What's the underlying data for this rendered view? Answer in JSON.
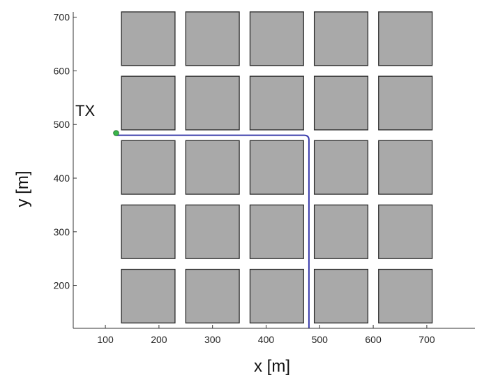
{
  "chart_data": {
    "type": "scatter",
    "title": "",
    "xlabel": "x [m]",
    "ylabel": "y [m]",
    "xlim": [
      40,
      790
    ],
    "ylim": [
      120,
      710
    ],
    "xticks": [
      100,
      200,
      300,
      400,
      500,
      600,
      700
    ],
    "yticks": [
      200,
      300,
      400,
      500,
      600,
      700
    ],
    "grid": false,
    "colors": {
      "building_fill": "#a9a9a9",
      "building_edge": "#2a2a2a",
      "route": "#3b3dab",
      "tx_marker": "#39b54a"
    },
    "buildings": [
      {
        "x0": 130,
        "x1": 230,
        "y0": 130,
        "y1": 230
      },
      {
        "x0": 250,
        "x1": 350,
        "y0": 130,
        "y1": 230
      },
      {
        "x0": 370,
        "x1": 470,
        "y0": 130,
        "y1": 230
      },
      {
        "x0": 490,
        "x1": 590,
        "y0": 130,
        "y1": 230
      },
      {
        "x0": 610,
        "x1": 710,
        "y0": 130,
        "y1": 230
      },
      {
        "x0": 130,
        "x1": 230,
        "y0": 250,
        "y1": 350
      },
      {
        "x0": 250,
        "x1": 350,
        "y0": 250,
        "y1": 350
      },
      {
        "x0": 370,
        "x1": 470,
        "y0": 250,
        "y1": 350
      },
      {
        "x0": 490,
        "x1": 590,
        "y0": 250,
        "y1": 350
      },
      {
        "x0": 610,
        "x1": 710,
        "y0": 250,
        "y1": 350
      },
      {
        "x0": 130,
        "x1": 230,
        "y0": 370,
        "y1": 470
      },
      {
        "x0": 250,
        "x1": 350,
        "y0": 370,
        "y1": 470
      },
      {
        "x0": 370,
        "x1": 470,
        "y0": 370,
        "y1": 470
      },
      {
        "x0": 490,
        "x1": 590,
        "y0": 370,
        "y1": 470
      },
      {
        "x0": 610,
        "x1": 710,
        "y0": 370,
        "y1": 470
      },
      {
        "x0": 130,
        "x1": 230,
        "y0": 490,
        "y1": 590
      },
      {
        "x0": 250,
        "x1": 350,
        "y0": 490,
        "y1": 590
      },
      {
        "x0": 370,
        "x1": 470,
        "y0": 490,
        "y1": 590
      },
      {
        "x0": 490,
        "x1": 590,
        "y0": 490,
        "y1": 590
      },
      {
        "x0": 610,
        "x1": 710,
        "y0": 490,
        "y1": 590
      },
      {
        "x0": 130,
        "x1": 230,
        "y0": 610,
        "y1": 710
      },
      {
        "x0": 250,
        "x1": 350,
        "y0": 610,
        "y1": 710
      },
      {
        "x0": 370,
        "x1": 470,
        "y0": 610,
        "y1": 710
      },
      {
        "x0": 490,
        "x1": 590,
        "y0": 610,
        "y1": 710
      },
      {
        "x0": 610,
        "x1": 710,
        "y0": 610,
        "y1": 710
      }
    ],
    "route": [
      [
        120,
        480
      ],
      [
        480,
        480
      ],
      [
        480,
        120
      ]
    ],
    "tx": {
      "label": "TX",
      "x": 120,
      "y": 484
    }
  }
}
